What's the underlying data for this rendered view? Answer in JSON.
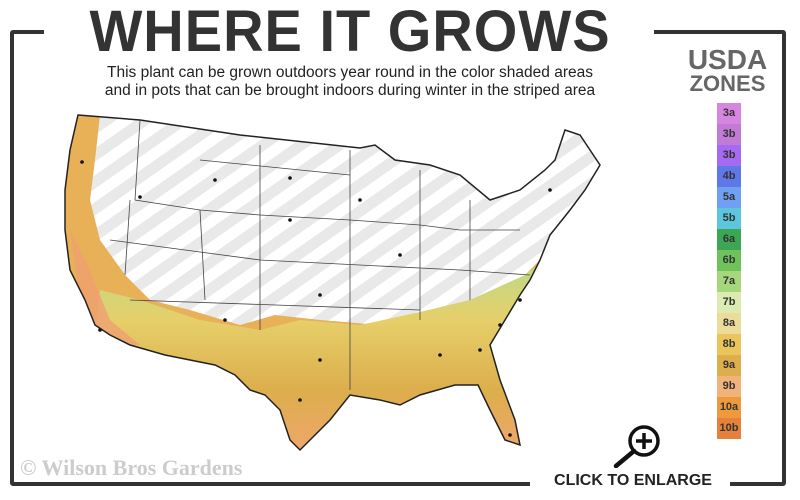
{
  "header": {
    "title": "WHERE IT GROWS",
    "subtitle_line1": "This plant can be grown outdoors year round in the color shaded areas",
    "subtitle_line2": "and in pots that can be brought indoors during winter in the striped area"
  },
  "legend": {
    "title_line1": "USDA",
    "title_line2": "ZONES",
    "zones": [
      {
        "label": "3a",
        "color": "#d685e0"
      },
      {
        "label": "3b",
        "color": "#c17ad6"
      },
      {
        "label": "3b",
        "color": "#a56af0"
      },
      {
        "label": "4b",
        "color": "#5f78e8"
      },
      {
        "label": "5a",
        "color": "#6fa0f2"
      },
      {
        "label": "5b",
        "color": "#5cc7dc"
      },
      {
        "label": "6a",
        "color": "#3da654"
      },
      {
        "label": "6b",
        "color": "#6fc15c"
      },
      {
        "label": "7a",
        "color": "#a6d77c"
      },
      {
        "label": "7b",
        "color": "#dcebb2"
      },
      {
        "label": "8a",
        "color": "#ecdc9a"
      },
      {
        "label": "8b",
        "color": "#e9c55a"
      },
      {
        "label": "9a",
        "color": "#dcae4c"
      },
      {
        "label": "9b",
        "color": "#f2b27c"
      },
      {
        "label": "10a",
        "color": "#ee9a3c"
      },
      {
        "label": "10b",
        "color": "#e5813a"
      }
    ]
  },
  "footer": {
    "copyright": "© Wilson Bros Gardens",
    "enlarge_label": "CLICK TO ENLARGE",
    "enlarge_icon": "zoom-in-magnifier-icon"
  }
}
